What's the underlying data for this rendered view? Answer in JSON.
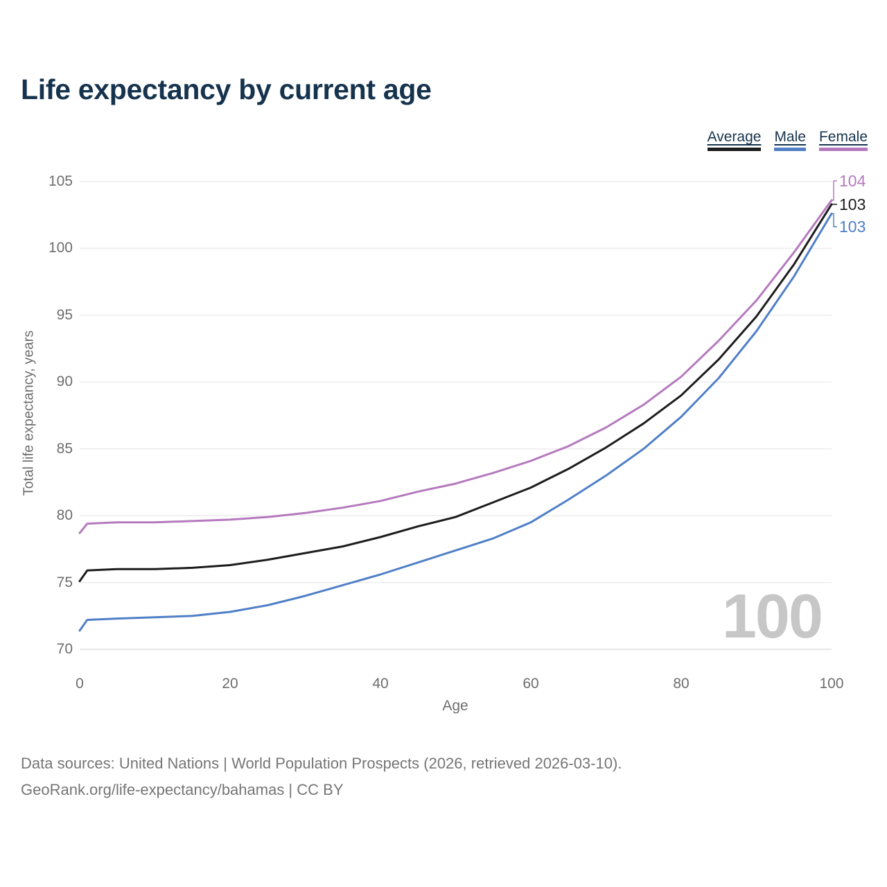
{
  "header": {
    "title": "Life expectancy by current age"
  },
  "chart_data": {
    "type": "line",
    "title": "Life expectancy by current age",
    "xlabel": "Age",
    "ylabel": "Total life expectancy, years",
    "xlim": [
      0,
      100
    ],
    "ylim": [
      70,
      105
    ],
    "x_ticks": [
      0,
      20,
      40,
      60,
      80,
      100
    ],
    "y_ticks": [
      70,
      75,
      80,
      85,
      90,
      95,
      100,
      105
    ],
    "grid": true,
    "legend_position": "top-right",
    "x": [
      0,
      1,
      5,
      10,
      15,
      20,
      25,
      30,
      35,
      40,
      45,
      50,
      55,
      60,
      65,
      70,
      75,
      80,
      85,
      90,
      95,
      100
    ],
    "series": [
      {
        "name": "Average",
        "color": "#1c1c1c",
        "end_label": "103",
        "values": [
          75.1,
          75.9,
          76.0,
          76.0,
          76.1,
          76.3,
          76.7,
          77.2,
          77.7,
          78.4,
          79.2,
          79.9,
          81.0,
          82.1,
          83.5,
          85.1,
          86.9,
          89.0,
          91.7,
          94.9,
          98.8,
          103.3
        ]
      },
      {
        "name": "Male",
        "color": "#4f7fc7",
        "end_label": "103",
        "values": [
          71.4,
          72.2,
          72.3,
          72.4,
          72.5,
          72.8,
          73.3,
          74.0,
          74.8,
          75.6,
          76.5,
          77.4,
          78.3,
          79.5,
          81.2,
          83.0,
          85.0,
          87.4,
          90.3,
          93.8,
          97.9,
          102.6
        ]
      },
      {
        "name": "Female",
        "color": "#b579be",
        "end_label": "104",
        "values": [
          78.7,
          79.4,
          79.5,
          79.5,
          79.6,
          79.7,
          79.9,
          80.2,
          80.6,
          81.1,
          81.8,
          82.4,
          83.2,
          84.1,
          85.2,
          86.6,
          88.3,
          90.4,
          93.1,
          96.1,
          99.7,
          103.6
        ]
      }
    ]
  },
  "watermark": "100",
  "footer": {
    "line1": "Data sources: United Nations | World Population Prospects (2026, retrieved 2026-03-10).",
    "line2": "GeoRank.org/life-expectancy/bahamas | CC BY"
  }
}
